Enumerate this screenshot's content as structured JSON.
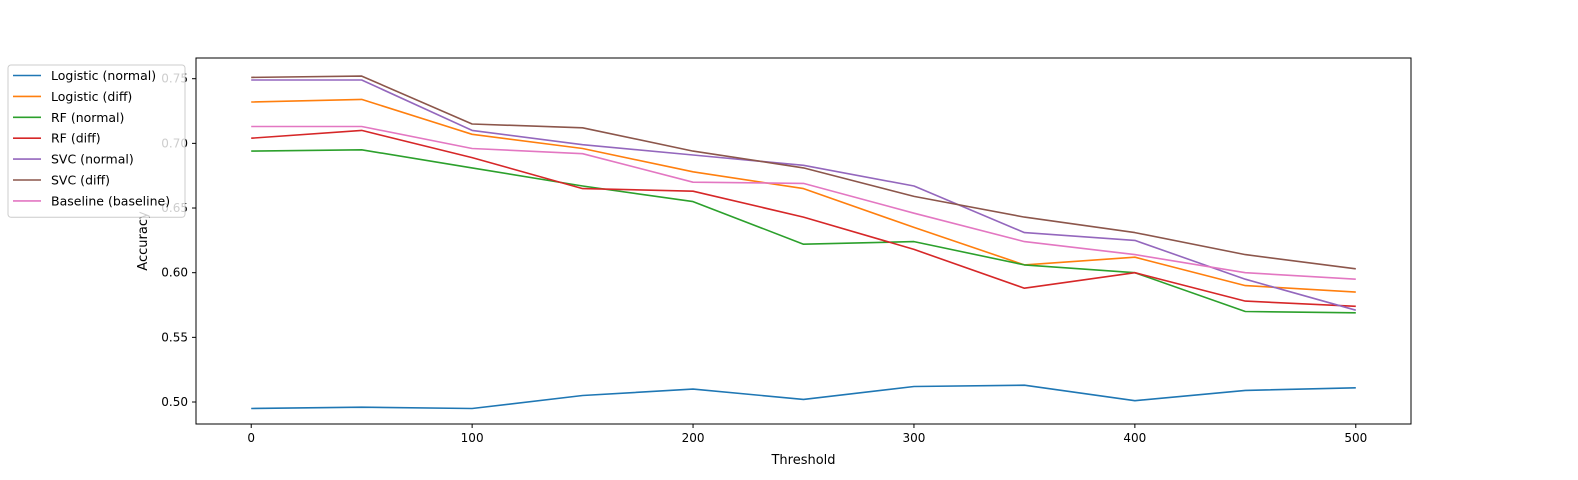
{
  "chart_data": {
    "type": "line",
    "title": "",
    "xlabel": "Threshold",
    "ylabel": "Accuracy",
    "x": [
      0,
      50,
      100,
      150,
      200,
      250,
      300,
      350,
      400,
      450,
      500
    ],
    "xlim": [
      -25,
      525
    ],
    "ylim": [
      0.483,
      0.766
    ],
    "xticks": [
      0,
      100,
      200,
      300,
      400,
      500
    ],
    "yticks": [
      0.5,
      0.55,
      0.6,
      0.65,
      0.7,
      0.75
    ],
    "xtick_labels": [
      "0",
      "100",
      "200",
      "300",
      "400",
      "500"
    ],
    "ytick_labels": [
      "0.50",
      "0.55",
      "0.60",
      "0.65",
      "0.70",
      "0.75"
    ],
    "grid": false,
    "legend_position": "upper-left, outside",
    "series": [
      {
        "name": "Logistic (normal)",
        "color": "#1f77b4",
        "values": [
          0.495,
          0.496,
          0.495,
          0.505,
          0.51,
          0.502,
          0.512,
          0.513,
          0.501,
          0.509,
          0.511
        ]
      },
      {
        "name": "Logistic (diff)",
        "color": "#ff7f0e",
        "values": [
          0.732,
          0.734,
          0.707,
          0.696,
          0.678,
          0.665,
          0.635,
          0.606,
          0.612,
          0.59,
          0.585
        ]
      },
      {
        "name": "RF (normal)",
        "color": "#2ca02c",
        "values": [
          0.694,
          0.695,
          0.681,
          0.667,
          0.655,
          0.622,
          0.624,
          0.606,
          0.6,
          0.57,
          0.569
        ]
      },
      {
        "name": "RF (diff)",
        "color": "#d62728",
        "values": [
          0.704,
          0.71,
          0.689,
          0.665,
          0.663,
          0.643,
          0.618,
          0.588,
          0.6,
          0.578,
          0.574
        ]
      },
      {
        "name": "SVC (normal)",
        "color": "#9467bd",
        "values": [
          0.749,
          0.749,
          0.71,
          0.699,
          0.691,
          0.683,
          0.667,
          0.631,
          0.625,
          0.595,
          0.571
        ]
      },
      {
        "name": "SVC (diff)",
        "color": "#8c564b",
        "values": [
          0.751,
          0.752,
          0.715,
          0.712,
          0.694,
          0.681,
          0.659,
          0.643,
          0.631,
          0.614,
          0.603
        ]
      },
      {
        "name": "Baseline (baseline)",
        "color": "#e377c2",
        "values": [
          0.713,
          0.713,
          0.696,
          0.692,
          0.67,
          0.669,
          0.646,
          0.624,
          0.614,
          0.6,
          0.595
        ]
      }
    ]
  }
}
